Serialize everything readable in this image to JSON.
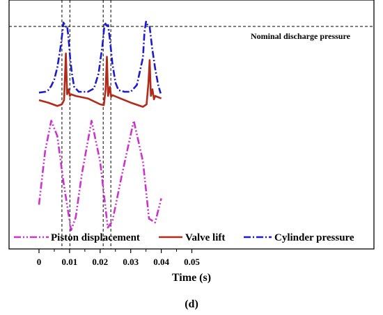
{
  "chart_data": {
    "type": "line",
    "xlabel": "Time (s)",
    "ylabel": "",
    "xlim": [
      -0.004,
      0.055
    ],
    "xticks": [
      "0",
      "0.01",
      "0.02",
      "0.03",
      "0.04",
      "0.05"
    ],
    "xtick_values": [
      0,
      0.01,
      0.02,
      0.03,
      0.04,
      0.05
    ],
    "panel_label": "(d)",
    "annotation": "Nominal discharge pressure",
    "markers": [
      0.0075,
      0.0101,
      0.021,
      0.0235
    ],
    "series": [
      {
        "name": "Piston displacement",
        "color": "#cc33cc",
        "style": "dash-dot-dot",
        "x": [
          0,
          0.002,
          0.004,
          0.006,
          0.008,
          0.0105,
          0.012,
          0.014,
          0.0172,
          0.02,
          0.0225,
          0.024,
          0.027,
          0.031,
          0.034,
          0.036,
          0.038,
          0.04
        ],
        "values": [
          0.2,
          0.62,
          0.86,
          0.74,
          0.38,
          0.0,
          0.1,
          0.44,
          0.86,
          0.54,
          0.02,
          0.07,
          0.42,
          0.86,
          0.54,
          0.09,
          0.06,
          0.25
        ]
      },
      {
        "name": "Valve lift",
        "color": "#b22a1a",
        "style": "solid",
        "x": [
          0,
          0.003,
          0.006,
          0.0075,
          0.0082,
          0.0088,
          0.0092,
          0.0097,
          0.0101,
          0.0105,
          0.012,
          0.016,
          0.02,
          0.0212,
          0.0218,
          0.0222,
          0.0226,
          0.0232,
          0.0236,
          0.024,
          0.026,
          0.03,
          0.034,
          0.0352,
          0.0358,
          0.0362,
          0.0366,
          0.0371,
          0.0376,
          0.038,
          0.04
        ],
        "values": [
          1.05,
          1.02,
          0.98,
          1.0,
          1.05,
          1.61,
          1.12,
          1.18,
          1.1,
          1.12,
          1.1,
          1.07,
          1.0,
          0.99,
          1.18,
          1.57,
          1.1,
          1.21,
          1.09,
          1.11,
          1.08,
          1.02,
          0.97,
          1.0,
          1.26,
          1.53,
          1.1,
          1.18,
          1.06,
          1.1,
          1.07
        ]
      },
      {
        "name": "Cylinder pressure",
        "color": "#1c1ccc",
        "style": "dash-dot",
        "x": [
          0,
          0.002,
          0.003,
          0.004,
          0.005,
          0.006,
          0.007,
          0.0078,
          0.008,
          0.0088,
          0.0092,
          0.0096,
          0.0102,
          0.0108,
          0.0115,
          0.013,
          0.016,
          0.018,
          0.0195,
          0.0208,
          0.0215,
          0.0222,
          0.0226,
          0.0232,
          0.024,
          0.025,
          0.026,
          0.028,
          0.03,
          0.032,
          0.034,
          0.0345,
          0.035,
          0.0356,
          0.0362,
          0.037,
          0.038,
          0.039,
          0.0398
        ],
        "values": [
          1.14,
          1.15,
          1.17,
          1.22,
          1.3,
          1.44,
          1.67,
          1.9,
          1.98,
          1.93,
          1.94,
          1.82,
          1.55,
          1.36,
          1.21,
          1.15,
          1.15,
          1.19,
          1.37,
          1.72,
          1.98,
          1.94,
          1.95,
          1.78,
          1.49,
          1.26,
          1.17,
          1.15,
          1.15,
          1.23,
          1.56,
          1.87,
          1.99,
          1.94,
          1.93,
          1.68,
          1.43,
          1.23,
          1.13
        ]
      }
    ]
  }
}
